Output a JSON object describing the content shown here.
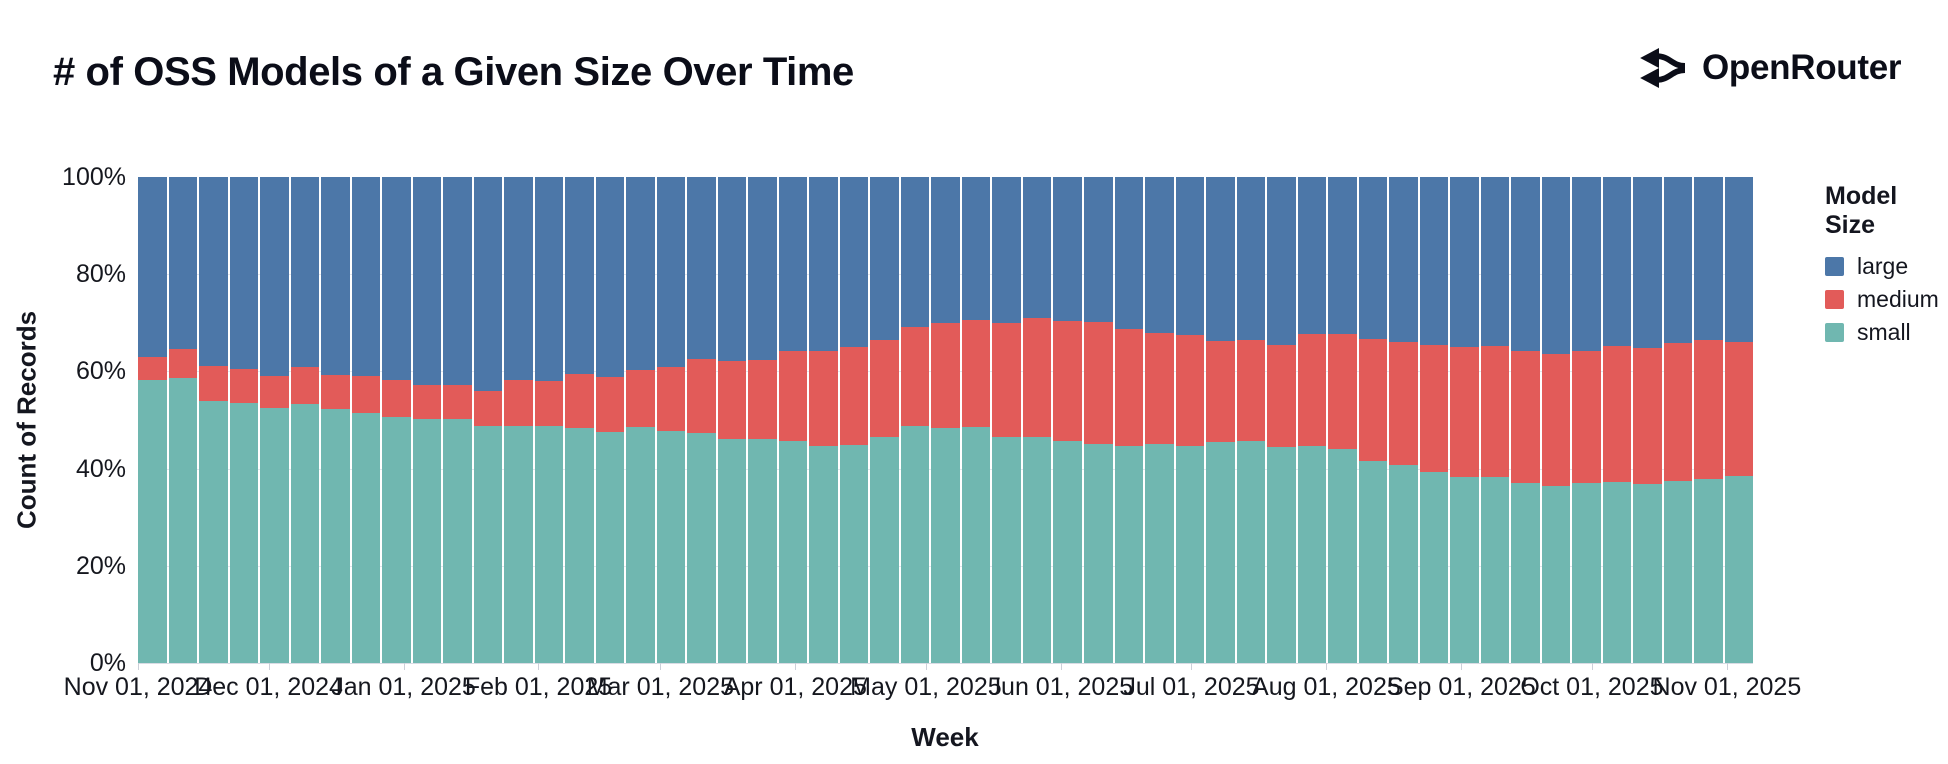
{
  "header": {
    "title": "# of OSS Models of a Given Size Over Time",
    "brand": "OpenRouter"
  },
  "chart_data": {
    "type": "bar",
    "stacked": true,
    "normalized": "percent-100",
    "title": "# of OSS Models of a Given Size Over Time",
    "xlabel": "Week",
    "ylabel": "Count of Records",
    "ylim": [
      0,
      100
    ],
    "grid": true,
    "colors": {
      "large": "#4C77A8",
      "medium": "#E25B59",
      "small": "#70B7B0"
    },
    "legend": {
      "title": "Model Size",
      "position": "right",
      "entries": [
        {
          "label": "large",
          "color": "#4C77A8"
        },
        {
          "label": "medium",
          "color": "#E25B59"
        },
        {
          "label": "small",
          "color": "#70B7B0"
        }
      ]
    },
    "y_ticks": [
      {
        "label": "100%",
        "value": 100
      },
      {
        "label": "80%",
        "value": 80
      },
      {
        "label": "60%",
        "value": 60
      },
      {
        "label": "40%",
        "value": 40
      },
      {
        "label": "20%",
        "value": 20
      },
      {
        "label": "0%",
        "value": 0
      }
    ],
    "x_span_days": 371,
    "x_ticks": [
      {
        "label": "Nov 01, 2024",
        "day": 0
      },
      {
        "label": "Dec 01, 2024",
        "day": 30
      },
      {
        "label": "Jan 01, 2025",
        "day": 61
      },
      {
        "label": "Feb 01, 2025",
        "day": 92
      },
      {
        "label": "Mar 01, 2025",
        "day": 120
      },
      {
        "label": "Apr 01, 2025",
        "day": 151
      },
      {
        "label": "May 01, 2025",
        "day": 181
      },
      {
        "label": "Jun 01, 2025",
        "day": 212
      },
      {
        "label": "Jul 01, 2025",
        "day": 242
      },
      {
        "label": "Aug 01, 2025",
        "day": 273
      },
      {
        "label": "Sep 01, 2025",
        "day": 304
      },
      {
        "label": "Oct 01, 2025",
        "day": 334
      },
      {
        "label": "Nov 01, 2025",
        "day": 365
      }
    ],
    "series_order_bottom_to_top": [
      "small",
      "medium",
      "large"
    ],
    "weeks": [
      {
        "week": "Nov 01, 2024",
        "small": 58.3,
        "medium": 4.7,
        "large": 37.0
      },
      {
        "week": "Nov 08, 2024",
        "small": 58.7,
        "medium": 5.9,
        "large": 35.4
      },
      {
        "week": "Nov 15, 2024",
        "small": 54.0,
        "medium": 7.1,
        "large": 38.9
      },
      {
        "week": "Nov 22, 2024",
        "small": 53.4,
        "medium": 7.1,
        "large": 39.5
      },
      {
        "week": "Nov 29, 2024",
        "small": 52.5,
        "medium": 6.5,
        "large": 41.0
      },
      {
        "week": "Dec 06, 2024",
        "small": 53.2,
        "medium": 7.7,
        "large": 39.1
      },
      {
        "week": "Dec 13, 2024",
        "small": 52.3,
        "medium": 6.9,
        "large": 40.8
      },
      {
        "week": "Dec 20, 2024",
        "small": 51.5,
        "medium": 7.5,
        "large": 41.0
      },
      {
        "week": "Dec 27, 2024",
        "small": 50.7,
        "medium": 7.5,
        "large": 41.8
      },
      {
        "week": "Jan 03, 2025",
        "small": 50.2,
        "medium": 7.1,
        "large": 42.7
      },
      {
        "week": "Jan 10, 2025",
        "small": 50.2,
        "medium": 7.1,
        "large": 42.7
      },
      {
        "week": "Jan 17, 2025",
        "small": 48.7,
        "medium": 7.2,
        "large": 44.1
      },
      {
        "week": "Jan 24, 2025",
        "small": 48.7,
        "medium": 9.6,
        "large": 41.7
      },
      {
        "week": "Jan 31, 2025",
        "small": 48.7,
        "medium": 9.3,
        "large": 42.0
      },
      {
        "week": "Feb 07, 2025",
        "small": 48.4,
        "medium": 11.0,
        "large": 40.6
      },
      {
        "week": "Feb 14, 2025",
        "small": 47.6,
        "medium": 11.2,
        "large": 41.2
      },
      {
        "week": "Feb 21, 2025",
        "small": 48.5,
        "medium": 11.7,
        "large": 39.8
      },
      {
        "week": "Feb 28, 2025",
        "small": 47.8,
        "medium": 13.2,
        "large": 39.0
      },
      {
        "week": "Mar 07, 2025",
        "small": 47.4,
        "medium": 15.2,
        "large": 37.4
      },
      {
        "week": "Mar 14, 2025",
        "small": 46.1,
        "medium": 16.0,
        "large": 37.9
      },
      {
        "week": "Mar 21, 2025",
        "small": 46.1,
        "medium": 16.2,
        "large": 37.7
      },
      {
        "week": "Mar 28, 2025",
        "small": 45.6,
        "medium": 18.7,
        "large": 35.7
      },
      {
        "week": "Apr 04, 2025",
        "small": 44.6,
        "medium": 19.7,
        "large": 35.7
      },
      {
        "week": "Apr 11, 2025",
        "small": 44.9,
        "medium": 20.2,
        "large": 34.9
      },
      {
        "week": "Apr 18, 2025",
        "small": 46.5,
        "medium": 19.9,
        "large": 33.6
      },
      {
        "week": "Apr 25, 2025",
        "small": 48.7,
        "medium": 20.4,
        "large": 30.9
      },
      {
        "week": "May 02, 2025",
        "small": 48.4,
        "medium": 21.6,
        "large": 30.0
      },
      {
        "week": "May 09, 2025",
        "small": 48.6,
        "medium": 22.0,
        "large": 29.4
      },
      {
        "week": "May 16, 2025",
        "small": 46.5,
        "medium": 23.5,
        "large": 30.0
      },
      {
        "week": "May 23, 2025",
        "small": 46.5,
        "medium": 24.5,
        "large": 29.0
      },
      {
        "week": "May 30, 2025",
        "small": 45.7,
        "medium": 24.7,
        "large": 29.6
      },
      {
        "week": "Jun 06, 2025",
        "small": 45.1,
        "medium": 25.1,
        "large": 29.8
      },
      {
        "week": "Jun 13, 2025",
        "small": 44.6,
        "medium": 24.1,
        "large": 31.3
      },
      {
        "week": "Jun 20, 2025",
        "small": 45.0,
        "medium": 22.8,
        "large": 32.2
      },
      {
        "week": "Jun 27, 2025",
        "small": 44.6,
        "medium": 22.8,
        "large": 32.6
      },
      {
        "week": "Jul 04, 2025",
        "small": 45.5,
        "medium": 20.8,
        "large": 33.7
      },
      {
        "week": "Jul 11, 2025",
        "small": 45.6,
        "medium": 20.9,
        "large": 33.5
      },
      {
        "week": "Jul 18, 2025",
        "small": 44.5,
        "medium": 20.9,
        "large": 34.6
      },
      {
        "week": "Jul 25, 2025",
        "small": 44.6,
        "medium": 23.0,
        "large": 32.4
      },
      {
        "week": "Aug 01, 2025",
        "small": 44.1,
        "medium": 23.6,
        "large": 32.3
      },
      {
        "week": "Aug 08, 2025",
        "small": 41.6,
        "medium": 25.0,
        "large": 33.4
      },
      {
        "week": "Aug 15, 2025",
        "small": 40.8,
        "medium": 25.2,
        "large": 34.0
      },
      {
        "week": "Aug 22, 2025",
        "small": 39.3,
        "medium": 26.2,
        "large": 34.5
      },
      {
        "week": "Aug 29, 2025",
        "small": 38.2,
        "medium": 26.9,
        "large": 34.9
      },
      {
        "week": "Sep 05, 2025",
        "small": 38.2,
        "medium": 27.1,
        "large": 34.7
      },
      {
        "week": "Sep 12, 2025",
        "small": 37.0,
        "medium": 27.3,
        "large": 35.7
      },
      {
        "week": "Sep 19, 2025",
        "small": 36.5,
        "medium": 27.1,
        "large": 36.4
      },
      {
        "week": "Sep 26, 2025",
        "small": 37.0,
        "medium": 27.1,
        "large": 35.9
      },
      {
        "week": "Oct 03, 2025",
        "small": 37.2,
        "medium": 28.1,
        "large": 34.7
      },
      {
        "week": "Oct 10, 2025",
        "small": 36.8,
        "medium": 28.1,
        "large": 35.1
      },
      {
        "week": "Oct 17, 2025",
        "small": 37.5,
        "medium": 28.3,
        "large": 34.2
      },
      {
        "week": "Oct 24, 2025",
        "small": 37.9,
        "medium": 28.5,
        "large": 33.6
      },
      {
        "week": "Oct 31, 2025",
        "small": 38.4,
        "medium": 27.7,
        "large": 33.9
      }
    ]
  }
}
